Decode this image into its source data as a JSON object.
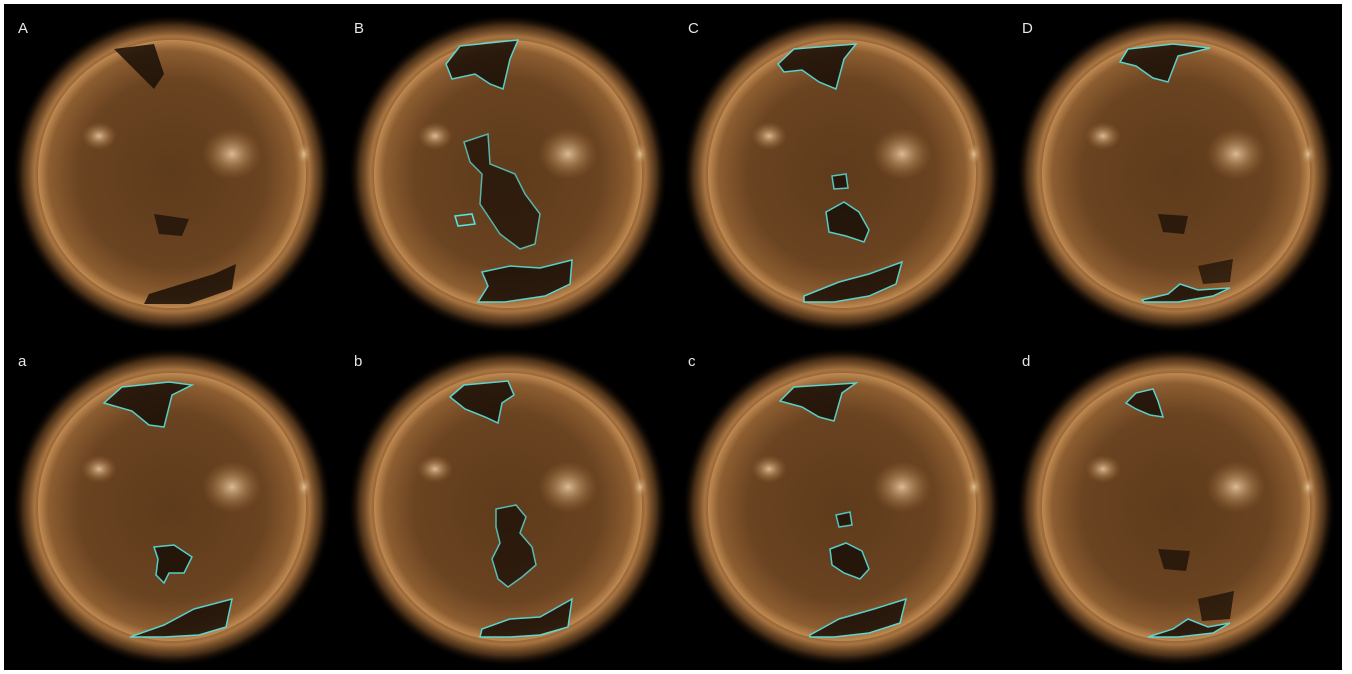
{
  "colors": {
    "background": "#000000",
    "corona": "#8a5c2e",
    "contour": "#55e6e6",
    "label": "#e6e6e6"
  },
  "panels": [
    {
      "label": "A"
    },
    {
      "label": "B"
    },
    {
      "label": "C"
    },
    {
      "label": "D"
    },
    {
      "label": "a"
    },
    {
      "label": "b"
    },
    {
      "label": "c"
    },
    {
      "label": "d"
    }
  ]
}
